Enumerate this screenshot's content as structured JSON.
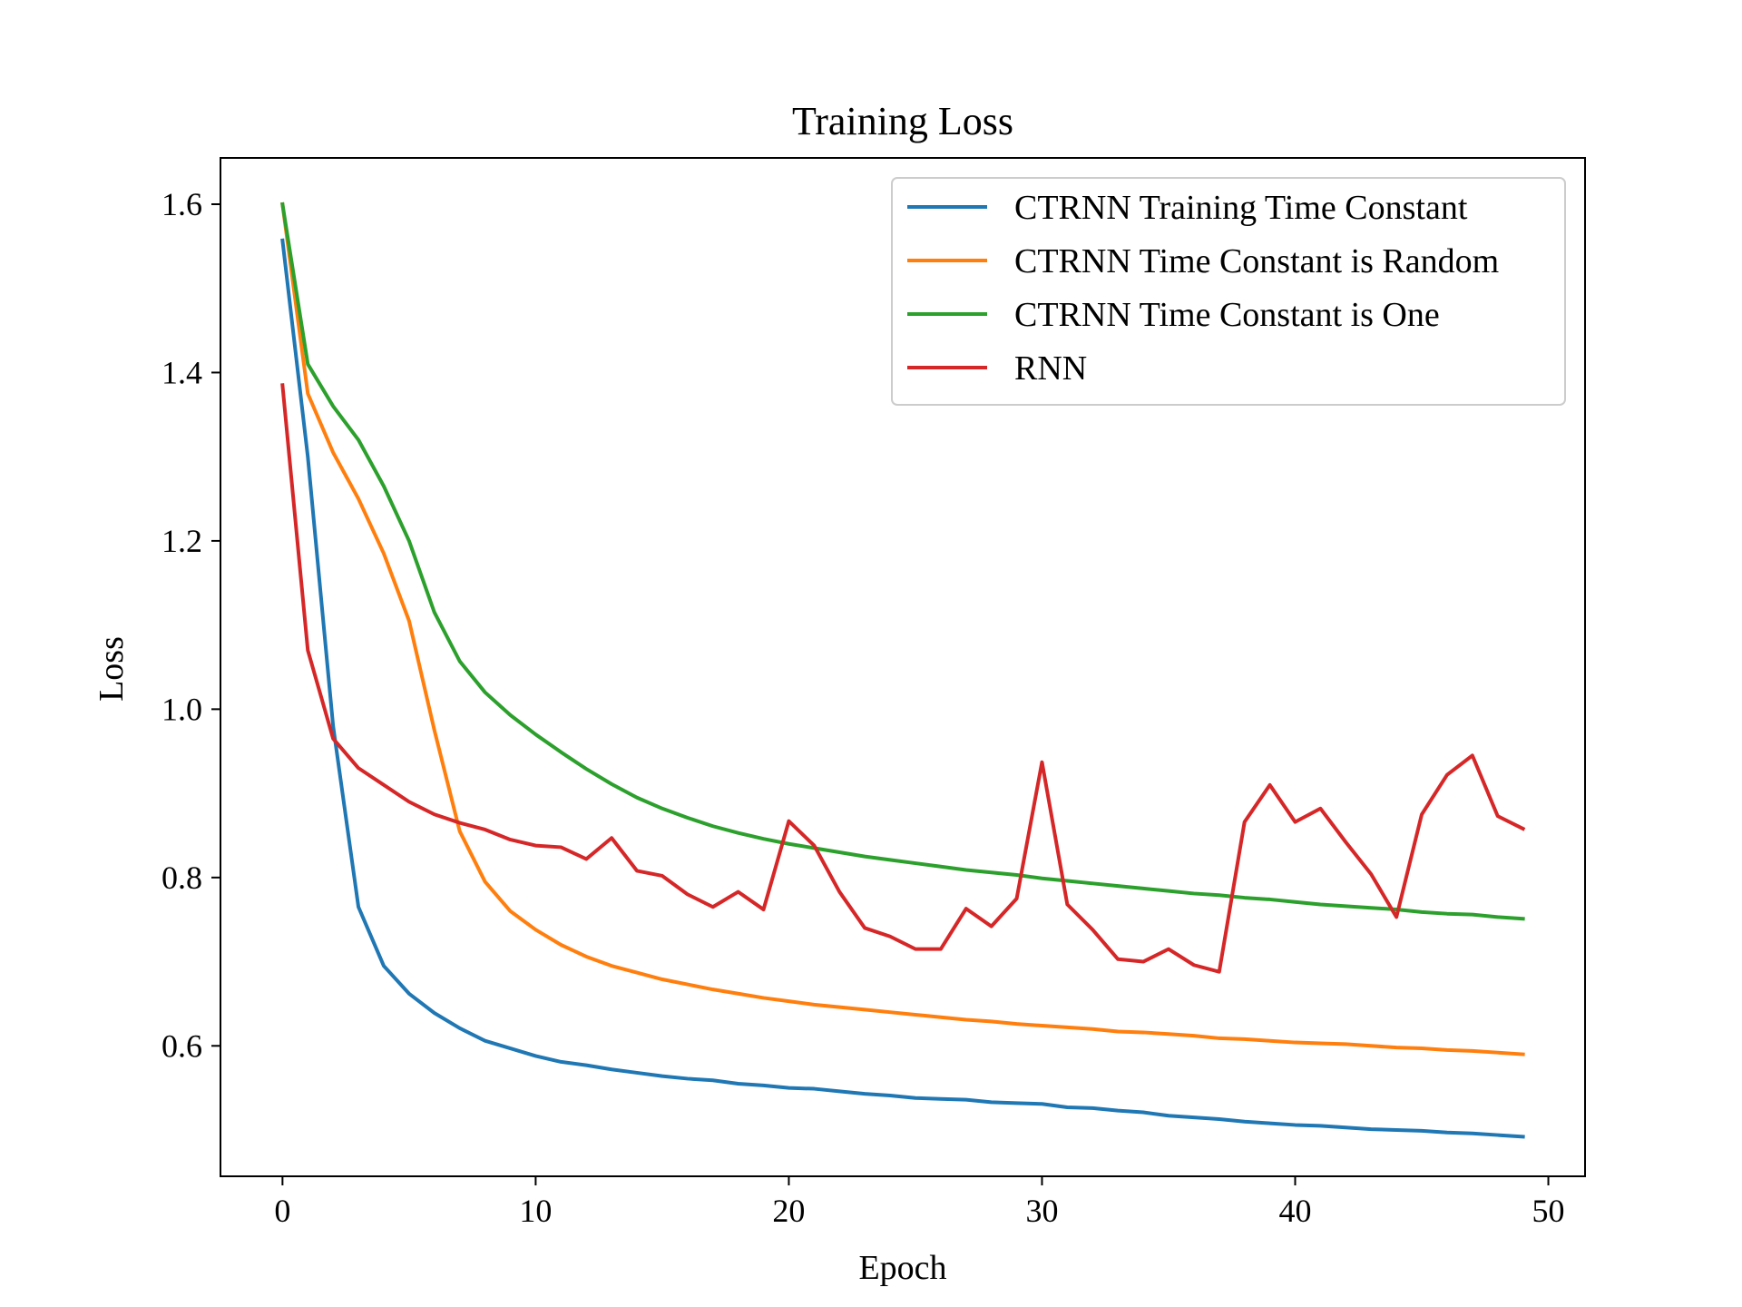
{
  "chart_data": {
    "type": "line",
    "title": "Training Loss",
    "xlabel": "Epoch",
    "ylabel": "Loss",
    "xlim": [
      -2.45,
      51.45
    ],
    "ylim": [
      0.445,
      1.655
    ],
    "xticks": [
      0,
      10,
      20,
      30,
      40,
      50
    ],
    "yticks": [
      0.6,
      0.8,
      1.0,
      1.2,
      1.4,
      1.6
    ],
    "xtick_labels": [
      "0",
      "10",
      "20",
      "30",
      "40",
      "50"
    ],
    "ytick_labels": [
      "0.6",
      "0.8",
      "1.0",
      "1.2",
      "1.4",
      "1.6"
    ],
    "grid": false,
    "legend_position": "top-right",
    "series": [
      {
        "name": "CTRNN Training Time Constant",
        "color": "#1f77b4",
        "values": [
          1.557,
          1.3,
          0.98,
          0.765,
          0.695,
          0.662,
          0.639,
          0.621,
          0.606,
          0.597,
          0.588,
          0.581,
          0.577,
          0.572,
          0.568,
          0.564,
          0.561,
          0.559,
          0.555,
          0.553,
          0.55,
          0.549,
          0.546,
          0.543,
          0.541,
          0.538,
          0.537,
          0.536,
          0.533,
          0.532,
          0.531,
          0.527,
          0.526,
          0.523,
          0.521,
          0.517,
          0.515,
          0.513,
          0.51,
          0.508,
          0.506,
          0.505,
          0.503,
          0.501,
          0.5,
          0.499,
          0.497,
          0.496,
          0.494,
          0.492
        ]
      },
      {
        "name": "CTRNN Time Constant is Random",
        "color": "#ff7f0e",
        "values": [
          1.6,
          1.375,
          1.305,
          1.25,
          1.185,
          1.105,
          0.975,
          0.855,
          0.795,
          0.76,
          0.738,
          0.72,
          0.706,
          0.695,
          0.687,
          0.679,
          0.673,
          0.667,
          0.662,
          0.657,
          0.653,
          0.649,
          0.646,
          0.643,
          0.64,
          0.637,
          0.634,
          0.631,
          0.629,
          0.626,
          0.624,
          0.622,
          0.62,
          0.617,
          0.616,
          0.614,
          0.612,
          0.609,
          0.608,
          0.606,
          0.604,
          0.603,
          0.602,
          0.6,
          0.598,
          0.597,
          0.595,
          0.594,
          0.592,
          0.59
        ]
      },
      {
        "name": "CTRNN Time Constant is One",
        "color": "#2ca02c",
        "values": [
          1.6,
          1.41,
          1.36,
          1.32,
          1.265,
          1.2,
          1.115,
          1.057,
          1.02,
          0.993,
          0.97,
          0.949,
          0.929,
          0.911,
          0.895,
          0.882,
          0.871,
          0.861,
          0.853,
          0.846,
          0.84,
          0.835,
          0.83,
          0.825,
          0.821,
          0.817,
          0.813,
          0.809,
          0.806,
          0.803,
          0.799,
          0.796,
          0.793,
          0.79,
          0.787,
          0.784,
          0.781,
          0.779,
          0.776,
          0.774,
          0.771,
          0.768,
          0.766,
          0.764,
          0.762,
          0.759,
          0.757,
          0.756,
          0.753,
          0.751
        ]
      },
      {
        "name": "RNN",
        "color": "#d62728",
        "values": [
          1.385,
          1.07,
          0.965,
          0.93,
          0.91,
          0.89,
          0.875,
          0.865,
          0.857,
          0.845,
          0.838,
          0.836,
          0.822,
          0.847,
          0.808,
          0.802,
          0.78,
          0.765,
          0.783,
          0.762,
          0.867,
          0.838,
          0.783,
          0.74,
          0.73,
          0.715,
          0.715,
          0.763,
          0.742,
          0.775,
          0.937,
          0.768,
          0.738,
          0.703,
          0.7,
          0.715,
          0.696,
          0.688,
          0.866,
          0.91,
          0.866,
          0.882,
          0.842,
          0.804,
          0.753,
          0.875,
          0.922,
          0.945,
          0.873,
          0.858
        ]
      }
    ]
  }
}
